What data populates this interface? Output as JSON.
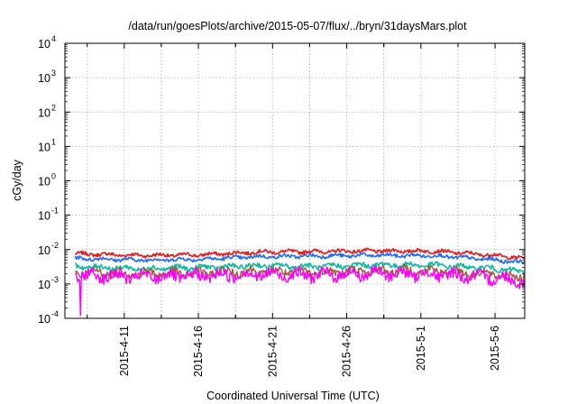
{
  "chart_data": {
    "type": "line",
    "title": "/data/run/goesPlots/archive/2015-05-07/flux/../bryn/31daysMars.plot",
    "xlabel": "Coordinated Universal Time (UTC)",
    "ylabel": "cGy/day",
    "y_scale": "log",
    "ylim": [
      0.0001,
      10000
    ],
    "xlim": [
      "2015-04-07",
      "2015-05-08"
    ],
    "grid": true,
    "legend": "none",
    "x_tick_labels": [
      "2015-4-11",
      "2015-4-16",
      "2015-4-21",
      "2015-4-26",
      "2015-5-1",
      "2015-5-6"
    ],
    "y_ticks": [
      {
        "base": "10",
        "exp": "-4"
      },
      {
        "base": "10",
        "exp": "-3"
      },
      {
        "base": "10",
        "exp": "-2"
      },
      {
        "base": "10",
        "exp": "-1"
      },
      {
        "base": "10",
        "exp": "0"
      },
      {
        "base": "10",
        "exp": "1"
      },
      {
        "base": "10",
        "exp": "2"
      },
      {
        "base": "10",
        "exp": "3"
      },
      {
        "base": "10",
        "exp": "4"
      }
    ],
    "series": [
      {
        "color": "#e41a1c",
        "x": [
          "2015-04-08",
          "2015-04-12",
          "2015-04-16",
          "2015-04-20",
          "2015-04-24",
          "2015-04-28",
          "2015-05-02",
          "2015-05-06",
          "2015-05-08"
        ],
        "values": [
          0.0075,
          0.0068,
          0.007,
          0.0085,
          0.0088,
          0.0092,
          0.009,
          0.0068,
          0.0055
        ]
      },
      {
        "color": "#1f6bff",
        "x": [
          "2015-04-08",
          "2015-04-12",
          "2015-04-16",
          "2015-04-20",
          "2015-04-24",
          "2015-04-28",
          "2015-05-02",
          "2015-05-06",
          "2015-05-08"
        ],
        "values": [
          0.0055,
          0.005,
          0.0052,
          0.0062,
          0.0065,
          0.0068,
          0.0066,
          0.005,
          0.0042
        ]
      },
      {
        "color": "#13b8a0",
        "x": [
          "2015-04-08",
          "2015-04-12",
          "2015-04-16",
          "2015-04-20",
          "2015-04-24",
          "2015-04-28",
          "2015-05-02",
          "2015-05-06",
          "2015-05-08"
        ],
        "values": [
          0.0032,
          0.0028,
          0.003,
          0.0034,
          0.0032,
          0.0036,
          0.0035,
          0.0028,
          0.0022
        ]
      },
      {
        "color": "#a05a3c",
        "x": [
          "2015-04-08",
          "2015-04-12",
          "2015-04-16",
          "2015-04-20",
          "2015-04-24",
          "2015-04-28",
          "2015-05-02",
          "2015-05-06",
          "2015-05-08"
        ],
        "values": [
          0.0022,
          0.002,
          0.0021,
          0.0023,
          0.0022,
          0.0024,
          0.0024,
          0.0019,
          0.0016
        ]
      },
      {
        "color": "#ff00ff",
        "x": [
          "2015-04-08",
          "2015-04-12",
          "2015-04-16",
          "2015-04-20",
          "2015-04-24",
          "2015-04-28",
          "2015-05-02",
          "2015-05-06",
          "2015-05-08"
        ],
        "values": [
          0.0018,
          0.0016,
          0.0017,
          0.0019,
          0.0018,
          0.002,
          0.0019,
          0.0015,
          0.0012
        ]
      }
    ]
  }
}
